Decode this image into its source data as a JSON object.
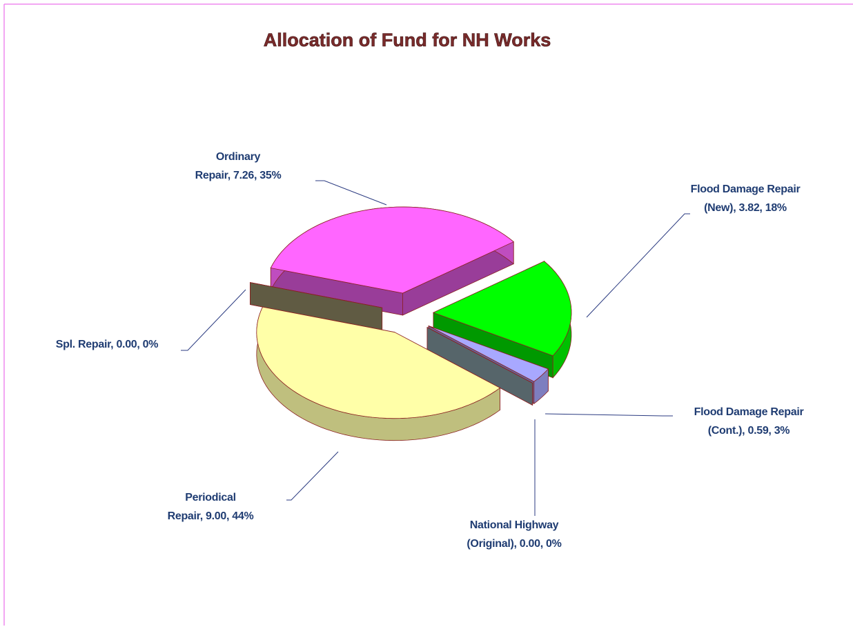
{
  "chart_data": {
    "type": "pie3d",
    "title": "Allocation of Fund for NH Works",
    "categories": [
      "Ordinary Repair",
      "Flood Damage Repair (New)",
      "Flood Damage Repair (Cont.)",
      "National Highway (Original)",
      "Periodical Repair",
      "Spl. Repair"
    ],
    "values": [
      7.26,
      3.82,
      0.59,
      0,
      9.0,
      0
    ],
    "value_labels": [
      [
        "Ordinary",
        "Repair, 7.26, 35%"
      ],
      [
        "Flood Damage Repair",
        "(New), 3.82, 18%"
      ],
      [
        "Flood Damage Repair",
        "(Cont.), 0.59, 3%"
      ],
      [
        "National Highway",
        "(Original), 0.00, 0%"
      ],
      [
        "Periodical",
        "Repair, 9.00, 44%"
      ],
      [
        "Spl. Repair,  0.00, 0%"
      ]
    ],
    "colors": [
      "#ff66ff",
      "#00ff00",
      "#a8a8ff",
      "#8fa8b0",
      "#ffffa8",
      "#a09870"
    ],
    "exploded": true
  }
}
